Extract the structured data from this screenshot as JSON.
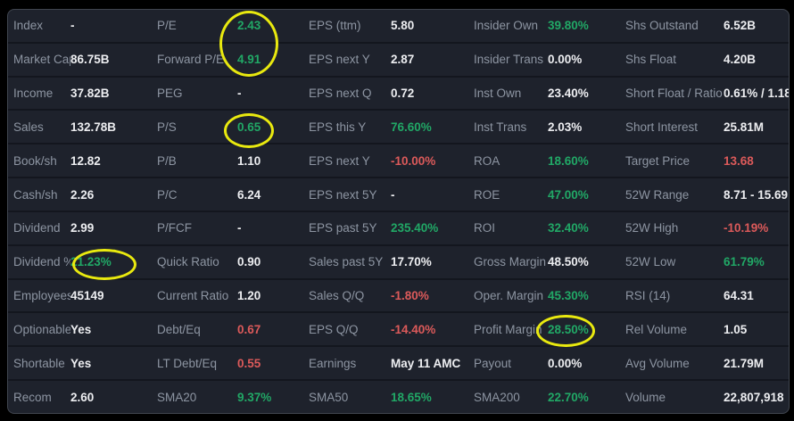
{
  "colors": {
    "background": "#1e222c",
    "outer_frame": "#000000",
    "table_border": "#40454f",
    "row_divider": "#13161e",
    "label_text": "#8d95a2",
    "value_text": "#edeef1",
    "positive_green": "#21a866",
    "negative_red": "#dc5a5a",
    "highlight_yellow": "#e9e90f"
  },
  "annotations": {
    "highlighted_metrics": [
      "P/E",
      "Forward P/E",
      "P/S",
      "Dividend %",
      "Profit Margin"
    ]
  },
  "table": {
    "rows": [
      {
        "cells": [
          {
            "label": "Index",
            "value": "-",
            "color": "white"
          },
          {
            "label": "P/E",
            "value": "2.43",
            "color": "green",
            "circled": true
          },
          {
            "label": "EPS (ttm)",
            "value": "5.80",
            "color": "white"
          },
          {
            "label": "Insider Own",
            "value": "39.80%",
            "color": "green"
          },
          {
            "label": "Shs Outstand",
            "value": "6.52B",
            "color": "white"
          }
        ]
      },
      {
        "cells": [
          {
            "label": "Market Cap",
            "value": "86.75B",
            "color": "white"
          },
          {
            "label": "Forward P/E",
            "value": "4.91",
            "color": "green",
            "circled": true
          },
          {
            "label": "EPS next Y",
            "value": "2.87",
            "color": "white"
          },
          {
            "label": "Insider Trans",
            "value": "0.00%",
            "color": "white"
          },
          {
            "label": "Shs Float",
            "value": "4.20B",
            "color": "white"
          }
        ]
      },
      {
        "cells": [
          {
            "label": "Income",
            "value": "37.82B",
            "color": "white"
          },
          {
            "label": "PEG",
            "value": "-",
            "color": "white"
          },
          {
            "label": "EPS next Q",
            "value": "0.72",
            "color": "white"
          },
          {
            "label": "Inst Own",
            "value": "23.40%",
            "color": "white"
          },
          {
            "label": "Short Float / Ratio",
            "value": "0.61% / 1.18",
            "color": "white"
          }
        ]
      },
      {
        "cells": [
          {
            "label": "Sales",
            "value": "132.78B",
            "color": "white"
          },
          {
            "label": "P/S",
            "value": "0.65",
            "color": "green",
            "circled": true
          },
          {
            "label": "EPS this Y",
            "value": "76.60%",
            "color": "green"
          },
          {
            "label": "Inst Trans",
            "value": "2.03%",
            "color": "white"
          },
          {
            "label": "Short Interest",
            "value": "25.81M",
            "color": "white"
          }
        ]
      },
      {
        "cells": [
          {
            "label": "Book/sh",
            "value": "12.82",
            "color": "white"
          },
          {
            "label": "P/B",
            "value": "1.10",
            "color": "white"
          },
          {
            "label": "EPS next Y",
            "value": "-10.00%",
            "color": "red"
          },
          {
            "label": "ROA",
            "value": "18.60%",
            "color": "green"
          },
          {
            "label": "Target Price",
            "value": "13.68",
            "color": "red"
          }
        ]
      },
      {
        "cells": [
          {
            "label": "Cash/sh",
            "value": "2.26",
            "color": "white"
          },
          {
            "label": "P/C",
            "value": "6.24",
            "color": "white"
          },
          {
            "label": "EPS next 5Y",
            "value": "-",
            "color": "white"
          },
          {
            "label": "ROE",
            "value": "47.00%",
            "color": "green"
          },
          {
            "label": "52W Range",
            "value": "8.71 - 15.69",
            "color": "white"
          }
        ]
      },
      {
        "cells": [
          {
            "label": "Dividend",
            "value": "2.99",
            "color": "white"
          },
          {
            "label": "P/FCF",
            "value": "-",
            "color": "white"
          },
          {
            "label": "EPS past 5Y",
            "value": "235.40%",
            "color": "green"
          },
          {
            "label": "ROI",
            "value": "32.40%",
            "color": "green"
          },
          {
            "label": "52W High",
            "value": "-10.19%",
            "color": "red"
          }
        ]
      },
      {
        "cells": [
          {
            "label": "Dividend %",
            "value": "21.23%",
            "color": "green",
            "circled": true
          },
          {
            "label": "Quick Ratio",
            "value": "0.90",
            "color": "white"
          },
          {
            "label": "Sales past 5Y",
            "value": "17.70%",
            "color": "white"
          },
          {
            "label": "Gross Margin",
            "value": "48.50%",
            "color": "white"
          },
          {
            "label": "52W Low",
            "value": "61.79%",
            "color": "green"
          }
        ]
      },
      {
        "cells": [
          {
            "label": "Employees",
            "value": "45149",
            "color": "white"
          },
          {
            "label": "Current Ratio",
            "value": "1.20",
            "color": "white"
          },
          {
            "label": "Sales Q/Q",
            "value": "-1.80%",
            "color": "red"
          },
          {
            "label": "Oper. Margin",
            "value": "45.30%",
            "color": "green"
          },
          {
            "label": "RSI (14)",
            "value": "64.31",
            "color": "white"
          }
        ]
      },
      {
        "cells": [
          {
            "label": "Optionable",
            "value": "Yes",
            "color": "white"
          },
          {
            "label": "Debt/Eq",
            "value": "0.67",
            "color": "red"
          },
          {
            "label": "EPS Q/Q",
            "value": "-14.40%",
            "color": "red"
          },
          {
            "label": "Profit Margin",
            "value": "28.50%",
            "color": "green",
            "circled": true
          },
          {
            "label": "Rel Volume",
            "value": "1.05",
            "color": "white"
          }
        ]
      },
      {
        "cells": [
          {
            "label": "Shortable",
            "value": "Yes",
            "color": "white"
          },
          {
            "label": "LT Debt/Eq",
            "value": "0.55",
            "color": "red"
          },
          {
            "label": "Earnings",
            "value": "May 11 AMC",
            "color": "white"
          },
          {
            "label": "Payout",
            "value": "0.00%",
            "color": "white"
          },
          {
            "label": "Avg Volume",
            "value": "21.79M",
            "color": "white"
          }
        ]
      },
      {
        "cells": [
          {
            "label": "Recom",
            "value": "2.60",
            "color": "white"
          },
          {
            "label": "SMA20",
            "value": "9.37%",
            "color": "green"
          },
          {
            "label": "SMA50",
            "value": "18.65%",
            "color": "green"
          },
          {
            "label": "SMA200",
            "value": "22.70%",
            "color": "green"
          },
          {
            "label": "Volume",
            "value": "22,807,918",
            "color": "white"
          }
        ]
      }
    ]
  }
}
